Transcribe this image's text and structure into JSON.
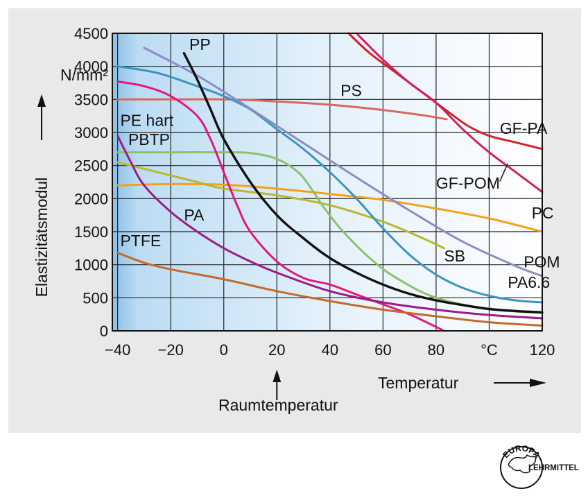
{
  "chart_data": {
    "type": "line",
    "xlabel": "Temperatur",
    "ylabel": "Elastizitätsmodul",
    "yunit": "N/mm²",
    "xunit": "°C",
    "xlim": [
      -42,
      120
    ],
    "ylim": [
      0,
      4500
    ],
    "xticks": [
      {
        "v": -40,
        "t": "−40"
      },
      {
        "v": -20,
        "t": "−20"
      },
      {
        "v": 0,
        "t": "0"
      },
      {
        "v": 20,
        "t": "20"
      },
      {
        "v": 40,
        "t": "40"
      },
      {
        "v": 60,
        "t": "60"
      },
      {
        "v": 80,
        "t": "80"
      },
      {
        "v": 100,
        "t": "°C"
      },
      {
        "v": 120,
        "t": "120"
      }
    ],
    "yticks": [
      0,
      500,
      1000,
      1500,
      2000,
      2500,
      3000,
      3500,
      4000,
      4500
    ],
    "grid": true,
    "annotation": {
      "x": 20,
      "text": "Raumtemperatur"
    },
    "series": [
      {
        "name": "GF-PA",
        "color": "#d2232a",
        "width": 3,
        "points": [
          [
            47,
            4500
          ],
          [
            55,
            4200
          ],
          [
            65,
            3900
          ],
          [
            75,
            3600
          ],
          [
            85,
            3300
          ],
          [
            92,
            3100
          ],
          [
            100,
            2950
          ],
          [
            110,
            2850
          ],
          [
            120,
            2750
          ]
        ]
      },
      {
        "name": "GF-POM",
        "color": "#d61f5a",
        "width": 3,
        "points": [
          [
            50,
            4500
          ],
          [
            60,
            4100
          ],
          [
            70,
            3750
          ],
          [
            80,
            3450
          ],
          [
            90,
            3050
          ],
          [
            100,
            2700
          ],
          [
            110,
            2400
          ],
          [
            120,
            2100
          ]
        ]
      },
      {
        "name": "PS",
        "color": "#d9675e",
        "width": 3,
        "points": [
          [
            -40,
            3500
          ],
          [
            -20,
            3500
          ],
          [
            0,
            3500
          ],
          [
            20,
            3470
          ],
          [
            40,
            3420
          ],
          [
            60,
            3340
          ],
          [
            75,
            3260
          ],
          [
            84,
            3200
          ]
        ]
      },
      {
        "name": "PC",
        "color": "#f4a01c",
        "width": 3,
        "points": [
          [
            -40,
            2200
          ],
          [
            -20,
            2220
          ],
          [
            0,
            2210
          ],
          [
            20,
            2150
          ],
          [
            40,
            2070
          ],
          [
            60,
            1980
          ],
          [
            80,
            1850
          ],
          [
            100,
            1700
          ],
          [
            120,
            1500
          ]
        ]
      },
      {
        "name": "SB",
        "color": "#b9b82e",
        "width": 3,
        "points": [
          [
            -40,
            2550
          ],
          [
            -25,
            2400
          ],
          [
            -10,
            2250
          ],
          [
            0,
            2150
          ],
          [
            20,
            2050
          ],
          [
            40,
            1900
          ],
          [
            60,
            1650
          ],
          [
            75,
            1400
          ],
          [
            83,
            1250
          ]
        ]
      },
      {
        "name": "PBTP",
        "color": "#8dc26b",
        "width": 3,
        "points": [
          [
            -40,
            2700
          ],
          [
            -20,
            2700
          ],
          [
            0,
            2700
          ],
          [
            10,
            2690
          ],
          [
            20,
            2600
          ],
          [
            28,
            2400
          ],
          [
            33,
            2150
          ],
          [
            38,
            1850
          ],
          [
            45,
            1500
          ],
          [
            55,
            1100
          ],
          [
            65,
            800
          ],
          [
            80,
            500
          ],
          [
            100,
            330
          ],
          [
            120,
            270
          ]
        ]
      },
      {
        "name": "PA6.6",
        "color": "#3a96c0",
        "width": 3,
        "points": [
          [
            -40,
            4000
          ],
          [
            -25,
            3900
          ],
          [
            -10,
            3700
          ],
          [
            0,
            3550
          ],
          [
            10,
            3350
          ],
          [
            20,
            3050
          ],
          [
            30,
            2750
          ],
          [
            40,
            2400
          ],
          [
            50,
            2000
          ],
          [
            60,
            1550
          ],
          [
            70,
            1150
          ],
          [
            80,
            850
          ],
          [
            90,
            650
          ],
          [
            100,
            530
          ],
          [
            110,
            460
          ],
          [
            120,
            430
          ]
        ]
      },
      {
        "name": "POM",
        "color": "#8d8cc4",
        "width": 3,
        "points": [
          [
            -30,
            4280
          ],
          [
            -10,
            3860
          ],
          [
            10,
            3360
          ],
          [
            30,
            2840
          ],
          [
            50,
            2320
          ],
          [
            70,
            1820
          ],
          [
            90,
            1350
          ],
          [
            110,
            980
          ],
          [
            120,
            830
          ]
        ]
      },
      {
        "name": "PE hart",
        "color": "#e2197c",
        "width": 3,
        "points": [
          [
            -40,
            3770
          ],
          [
            -30,
            3700
          ],
          [
            -20,
            3550
          ],
          [
            -10,
            3250
          ],
          [
            -5,
            2900
          ],
          [
            0,
            2400
          ],
          [
            5,
            1900
          ],
          [
            10,
            1500
          ],
          [
            20,
            1050
          ],
          [
            30,
            800
          ],
          [
            40,
            700
          ],
          [
            50,
            550
          ],
          [
            60,
            400
          ],
          [
            70,
            250
          ],
          [
            80,
            60
          ],
          [
            83,
            0
          ]
        ]
      },
      {
        "name": "PP",
        "color": "#111111",
        "width": 3.4,
        "points": [
          [
            -15,
            4200
          ],
          [
            -10,
            3800
          ],
          [
            -5,
            3350
          ],
          [
            0,
            2900
          ],
          [
            10,
            2250
          ],
          [
            20,
            1750
          ],
          [
            30,
            1400
          ],
          [
            40,
            1100
          ],
          [
            50,
            880
          ],
          [
            60,
            700
          ],
          [
            70,
            560
          ],
          [
            80,
            460
          ],
          [
            90,
            390
          ],
          [
            100,
            330
          ],
          [
            110,
            300
          ],
          [
            120,
            280
          ]
        ]
      },
      {
        "name": "PA",
        "color": "#9b1c86",
        "width": 3,
        "points": [
          [
            -40,
            2950
          ],
          [
            -35,
            2550
          ],
          [
            -30,
            2200
          ],
          [
            -20,
            1800
          ],
          [
            -10,
            1500
          ],
          [
            0,
            1250
          ],
          [
            10,
            1050
          ],
          [
            20,
            880
          ],
          [
            40,
            600
          ],
          [
            60,
            430
          ],
          [
            80,
            320
          ],
          [
            100,
            240
          ],
          [
            120,
            190
          ]
        ]
      },
      {
        "name": "PTFE",
        "color": "#c46a2a",
        "width": 3,
        "points": [
          [
            -40,
            1180
          ],
          [
            -30,
            1030
          ],
          [
            -20,
            930
          ],
          [
            0,
            780
          ],
          [
            20,
            600
          ],
          [
            40,
            450
          ],
          [
            60,
            320
          ],
          [
            80,
            220
          ],
          [
            100,
            130
          ],
          [
            120,
            80
          ]
        ]
      }
    ],
    "curve_labels": [
      {
        "series": "PP",
        "text": "PP",
        "x": -13,
        "y": 4250
      },
      {
        "series": "PS",
        "text": "PS",
        "x": 44,
        "y": 3550
      },
      {
        "series": "PE hart",
        "text": "PE hart",
        "x": -39,
        "y": 3100
      },
      {
        "series": "PBTP",
        "text": "PBTP",
        "x": -36,
        "y": 2810
      },
      {
        "series": "GF-PA",
        "text": "GF-PA",
        "x": 104,
        "y": 2980
      },
      {
        "series": "GF-POM",
        "text": "GF-POM",
        "x": 80,
        "y": 2150
      },
      {
        "series": "PA",
        "text": "PA",
        "x": -15,
        "y": 1670
      },
      {
        "series": "PC",
        "text": "PC",
        "x": 116,
        "y": 1700
      },
      {
        "series": "PTFE",
        "text": "PTFE",
        "x": -39,
        "y": 1280
      },
      {
        "series": "SB",
        "text": "SB",
        "x": 83,
        "y": 1050
      },
      {
        "series": "POM",
        "text": "POM",
        "x": 113,
        "y": 960
      },
      {
        "series": "PA6.6",
        "text": "PA6.6",
        "x": 107,
        "y": 650
      }
    ]
  },
  "logo": {
    "top": "EUROPA",
    "bottom": "LEHRMITTEL"
  }
}
